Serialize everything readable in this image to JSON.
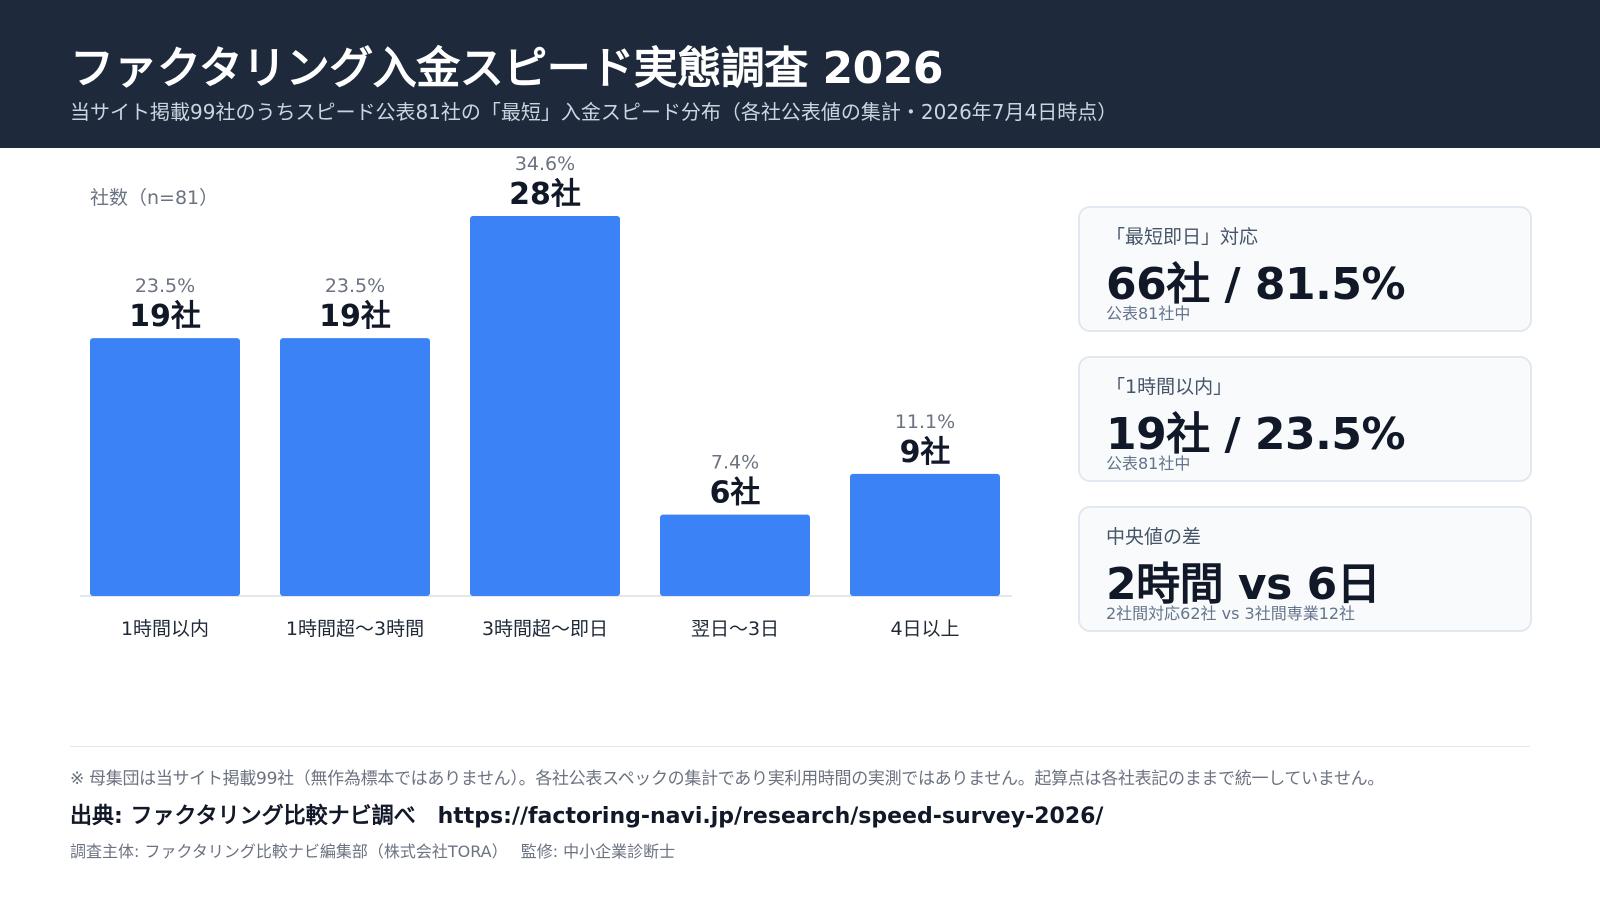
{
  "header": {
    "title": "ファクタリング入金スピード実態調査 2026",
    "subtitle": "当サイト掲載99社のうちスピード公表81社の「最短」入金スピード分布（各社公表値の集計・2026年7月4日時点）"
  },
  "chart_data": {
    "type": "bar",
    "ylabel": "社数（n=81）",
    "categories": [
      "1時間以内",
      "1時間超〜3時間",
      "3時間超〜即日",
      "翌日〜3日",
      "4日以上"
    ],
    "values": [
      19,
      19,
      28,
      6,
      9
    ],
    "value_labels": [
      "19社",
      "19社",
      "28社",
      "6社",
      "9社"
    ],
    "percent_labels": [
      "23.5%",
      "23.5%",
      "34.6%",
      "7.4%",
      "11.1%"
    ],
    "ylim": [
      0,
      28
    ],
    "grid": false,
    "bar_color": "#3b82f6"
  },
  "cards": [
    {
      "label": "「最短即日」対応",
      "value": "66社 / 81.5%",
      "note": "公表81社中"
    },
    {
      "label": "「1時間以内」",
      "value": "19社 / 23.5%",
      "note": "公表81社中"
    },
    {
      "label": "中央値の差",
      "value": "2時間 vs 6日",
      "note": "2社間対応62社 vs 3社間専業12社"
    }
  ],
  "footer": {
    "disclaimer": "※ 母集団は当サイト掲載99社（無作為標本ではありません）。各社公表スペックの集計であり実利用時間の実測ではありません。起算点は各社表記のままで統一していません。",
    "source": "出典: ファクタリング比較ナビ調べ　https://factoring-navi.jp/research/speed-survey-2026/",
    "credit": "調査主体: ファクタリング比較ナビ編集部（株式会社TORA）　 監修: 中小企業診断士"
  }
}
